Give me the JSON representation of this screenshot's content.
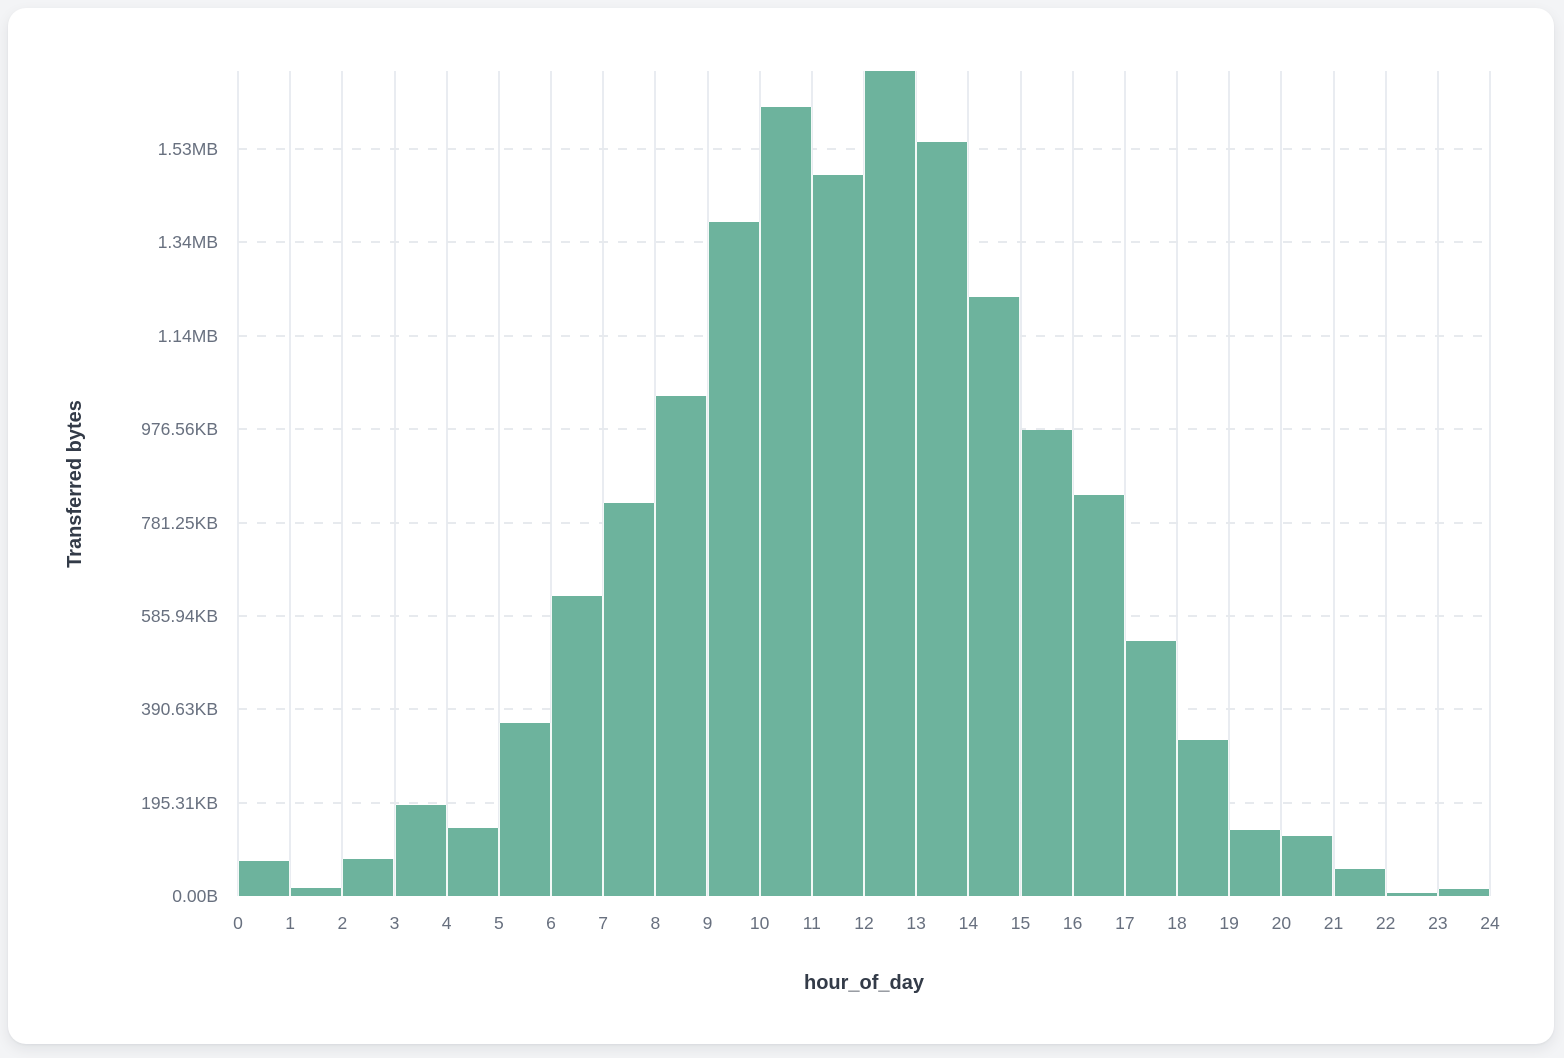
{
  "chart_data": {
    "type": "bar",
    "subtype": "histogram",
    "title": "",
    "xlabel": "hour_of_day",
    "ylabel": "Transferred bytes",
    "bin_edges": [
      0,
      1,
      2,
      3,
      4,
      5,
      6,
      7,
      8,
      9,
      10,
      11,
      12,
      13,
      14,
      15,
      16,
      17,
      18,
      19,
      20,
      21,
      22,
      23,
      24
    ],
    "x_tick_labels": [
      "0",
      "1",
      "2",
      "3",
      "4",
      "5",
      "6",
      "7",
      "8",
      "9",
      "10",
      "11",
      "12",
      "13",
      "14",
      "15",
      "16",
      "17",
      "18",
      "19",
      "20",
      "21",
      "22",
      "23",
      "24"
    ],
    "categories": [
      "0",
      "1",
      "2",
      "3",
      "4",
      "5",
      "6",
      "7",
      "8",
      "9",
      "10",
      "11",
      "12",
      "13",
      "14",
      "15",
      "16",
      "17",
      "18",
      "19",
      "20",
      "21",
      "22",
      "23"
    ],
    "values": [
      76000,
      17000,
      80000,
      196000,
      146000,
      371000,
      643000,
      841000,
      1071000,
      1444000,
      1690000,
      1545000,
      1767000,
      1614000,
      1282000,
      999000,
      858000,
      547000,
      335000,
      141000,
      129000,
      58000,
      6600,
      14700
    ],
    "values_unit": "bytes",
    "y_ticks": [
      {
        "label": "0.00B",
        "bytes": 0
      },
      {
        "label": "195.31KB",
        "bytes": 200000
      },
      {
        "label": "390.63KB",
        "bytes": 400000
      },
      {
        "label": "585.94KB",
        "bytes": 600000
      },
      {
        "label": "781.25KB",
        "bytes": 800000
      },
      {
        "label": "976.56KB",
        "bytes": 1000000
      },
      {
        "label": "1.14MB",
        "bytes": 1200000
      },
      {
        "label": "1.34MB",
        "bytes": 1400000
      },
      {
        "label": "1.53MB",
        "bytes": 1600000
      }
    ],
    "ylim": [
      0,
      1767000
    ],
    "grid": {
      "vertical": "solid",
      "horizontal": "dashed"
    },
    "legend": {
      "visible": false
    },
    "colors": {
      "bar": "#6db39d",
      "grid_vertical": "#e9ecf1",
      "grid_horizontal": "#e7eaee",
      "tick_label": "#68707f",
      "axis_title": "#333b48",
      "card_background": "#ffffff",
      "page_background": "#f3f4f6"
    }
  }
}
